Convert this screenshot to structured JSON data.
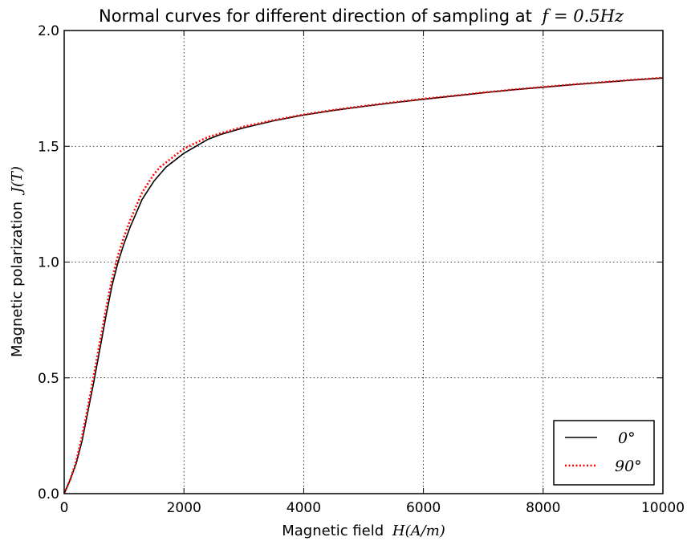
{
  "chart_data": {
    "type": "line",
    "title": "Normal curves for different direction of sampling at",
    "title_math": "f = 0.5Hz",
    "xlabel": "Magnetic field",
    "xlabel_math": "H(A/m)",
    "ylabel": "Magnetic polarization",
    "ylabel_math": "J(T)",
    "xlim": [
      0,
      10000
    ],
    "ylim": [
      0,
      2.0
    ],
    "xticks": [
      "0",
      "2000",
      "4000",
      "6000",
      "8000",
      "10000"
    ],
    "yticks": [
      "0.0",
      "0.5",
      "1.0",
      "1.5",
      "2.0"
    ],
    "grid": true,
    "legend_position": "lower-right",
    "series": [
      {
        "name": "0°",
        "color": "#000000",
        "style": "solid",
        "points": [
          [
            0,
            0
          ],
          [
            100,
            0.06
          ],
          [
            200,
            0.13
          ],
          [
            300,
            0.23
          ],
          [
            400,
            0.36
          ],
          [
            500,
            0.49
          ],
          [
            600,
            0.63
          ],
          [
            700,
            0.77
          ],
          [
            800,
            0.9
          ],
          [
            900,
            1.0
          ],
          [
            1000,
            1.08
          ],
          [
            1100,
            1.15
          ],
          [
            1200,
            1.21
          ],
          [
            1300,
            1.27
          ],
          [
            1400,
            1.31
          ],
          [
            1500,
            1.35
          ],
          [
            1600,
            1.38
          ],
          [
            1700,
            1.41
          ],
          [
            1800,
            1.43
          ],
          [
            1900,
            1.45
          ],
          [
            2000,
            1.47
          ],
          [
            2200,
            1.5
          ],
          [
            2400,
            1.53
          ],
          [
            2600,
            1.55
          ],
          [
            2800,
            1.565
          ],
          [
            3000,
            1.58
          ],
          [
            3500,
            1.61
          ],
          [
            4000,
            1.635
          ],
          [
            4500,
            1.655
          ],
          [
            5000,
            1.672
          ],
          [
            5500,
            1.688
          ],
          [
            6000,
            1.703
          ],
          [
            6500,
            1.717
          ],
          [
            7000,
            1.731
          ],
          [
            7500,
            1.744
          ],
          [
            8000,
            1.755
          ],
          [
            8500,
            1.766
          ],
          [
            9000,
            1.776
          ],
          [
            9500,
            1.786
          ],
          [
            10000,
            1.795
          ]
        ]
      },
      {
        "name": "90°",
        "color": "#ff0000",
        "style": "dotted",
        "points": [
          [
            0,
            0
          ],
          [
            100,
            0.06
          ],
          [
            200,
            0.14
          ],
          [
            300,
            0.25
          ],
          [
            400,
            0.38
          ],
          [
            500,
            0.52
          ],
          [
            600,
            0.66
          ],
          [
            700,
            0.8
          ],
          [
            800,
            0.93
          ],
          [
            900,
            1.03
          ],
          [
            1000,
            1.11
          ],
          [
            1100,
            1.18
          ],
          [
            1200,
            1.24
          ],
          [
            1300,
            1.3
          ],
          [
            1400,
            1.34
          ],
          [
            1500,
            1.38
          ],
          [
            1600,
            1.41
          ],
          [
            1700,
            1.43
          ],
          [
            1800,
            1.45
          ],
          [
            1900,
            1.47
          ],
          [
            2000,
            1.49
          ],
          [
            2200,
            1.515
          ],
          [
            2400,
            1.54
          ],
          [
            2600,
            1.555
          ],
          [
            2800,
            1.57
          ],
          [
            3000,
            1.585
          ],
          [
            3500,
            1.613
          ],
          [
            4000,
            1.637
          ],
          [
            4500,
            1.657
          ],
          [
            5000,
            1.674
          ],
          [
            5500,
            1.69
          ],
          [
            6000,
            1.705
          ],
          [
            6500,
            1.718
          ],
          [
            7000,
            1.732
          ],
          [
            7500,
            1.745
          ],
          [
            8000,
            1.756
          ],
          [
            8500,
            1.767
          ],
          [
            9000,
            1.777
          ],
          [
            9500,
            1.787
          ],
          [
            10000,
            1.796
          ]
        ]
      }
    ]
  }
}
